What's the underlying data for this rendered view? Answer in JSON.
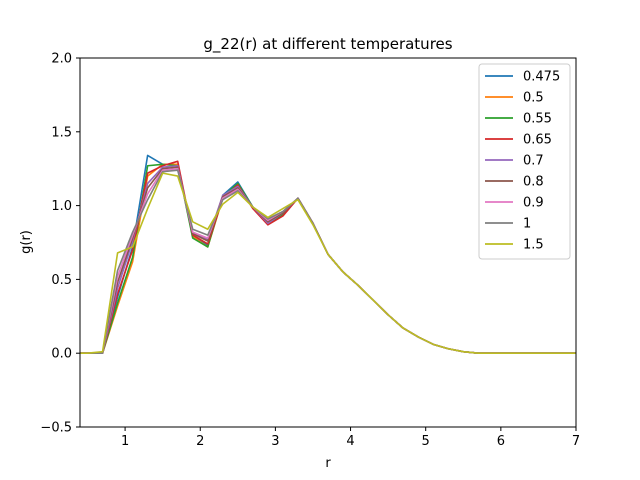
{
  "chart_data": {
    "type": "line",
    "title": "g_22(r) at different temperatures",
    "xlabel": "r",
    "ylabel": "g(r)",
    "xlim": [
      0.4,
      7
    ],
    "ylim": [
      -0.5,
      2.0
    ],
    "xticks": [
      1,
      2,
      3,
      4,
      5,
      6,
      7
    ],
    "yticks": [
      -0.5,
      0.0,
      0.5,
      1.0,
      1.5,
      2.0
    ],
    "ytick_labels": [
      "−0.5",
      "0.0",
      "0.5",
      "1.0",
      "1.5",
      "2.0"
    ],
    "grid": false,
    "legend_position": "upper right",
    "x": [
      0.4,
      0.5,
      0.7,
      0.9,
      1.1,
      1.3,
      1.5,
      1.7,
      1.9,
      2.1,
      2.3,
      2.5,
      2.7,
      2.9,
      3.1,
      3.3,
      3.5,
      3.7,
      3.9,
      4.1,
      4.3,
      4.5,
      4.7,
      4.9,
      5.1,
      5.3,
      5.5,
      5.7,
      5.9,
      6.1,
      6.3,
      6.5,
      6.7,
      7.0
    ],
    "series": [
      {
        "name": "0.475",
        "color": "#1f77b4",
        "values": [
          0.0,
          0.0,
          0.0,
          0.38,
          0.72,
          1.34,
          1.28,
          1.28,
          0.79,
          0.73,
          1.07,
          1.16,
          0.99,
          0.88,
          0.95,
          1.05,
          0.88,
          0.67,
          0.55,
          0.46,
          0.36,
          0.26,
          0.17,
          0.11,
          0.06,
          0.03,
          0.01,
          0.0,
          0.0,
          0.0,
          0.0,
          0.0,
          0.0,
          0.0
        ]
      },
      {
        "name": "0.5",
        "color": "#ff7f0e",
        "values": [
          0.0,
          0.0,
          0.0,
          0.32,
          0.62,
          1.2,
          1.28,
          1.28,
          0.79,
          0.72,
          1.05,
          1.13,
          0.99,
          0.88,
          0.94,
          1.05,
          0.88,
          0.67,
          0.55,
          0.46,
          0.36,
          0.26,
          0.17,
          0.11,
          0.06,
          0.03,
          0.01,
          0.0,
          0.0,
          0.0,
          0.0,
          0.0,
          0.0,
          0.0
        ]
      },
      {
        "name": "0.55",
        "color": "#2ca02c",
        "values": [
          0.0,
          0.0,
          0.0,
          0.34,
          0.65,
          1.27,
          1.28,
          1.27,
          0.78,
          0.72,
          1.06,
          1.15,
          0.99,
          0.88,
          0.94,
          1.05,
          0.88,
          0.67,
          0.55,
          0.46,
          0.36,
          0.26,
          0.17,
          0.11,
          0.06,
          0.03,
          0.01,
          0.0,
          0.0,
          0.0,
          0.0,
          0.0,
          0.0,
          0.0
        ]
      },
      {
        "name": "0.65",
        "color": "#d62728",
        "values": [
          0.0,
          0.0,
          0.0,
          0.4,
          0.7,
          1.22,
          1.27,
          1.3,
          0.8,
          0.74,
          1.05,
          1.14,
          0.98,
          0.87,
          0.93,
          1.05,
          0.88,
          0.67,
          0.55,
          0.46,
          0.36,
          0.26,
          0.17,
          0.11,
          0.06,
          0.03,
          0.01,
          0.0,
          0.0,
          0.0,
          0.0,
          0.0,
          0.0,
          0.0
        ]
      },
      {
        "name": "0.7",
        "color": "#9467bd",
        "values": [
          0.0,
          0.0,
          0.0,
          0.44,
          0.76,
          1.15,
          1.26,
          1.27,
          0.81,
          0.77,
          1.07,
          1.13,
          0.99,
          0.88,
          0.95,
          1.05,
          0.88,
          0.67,
          0.55,
          0.46,
          0.36,
          0.26,
          0.17,
          0.11,
          0.06,
          0.03,
          0.01,
          0.0,
          0.0,
          0.0,
          0.0,
          0.0,
          0.0,
          0.0
        ]
      },
      {
        "name": "0.8",
        "color": "#8c564b",
        "values": [
          0.0,
          0.0,
          0.0,
          0.48,
          0.78,
          1.12,
          1.25,
          1.26,
          0.81,
          0.76,
          1.06,
          1.12,
          0.99,
          0.89,
          0.95,
          1.05,
          0.88,
          0.67,
          0.55,
          0.46,
          0.36,
          0.26,
          0.17,
          0.11,
          0.06,
          0.03,
          0.01,
          0.0,
          0.0,
          0.0,
          0.0,
          0.0,
          0.0,
          0.0
        ]
      },
      {
        "name": "0.9",
        "color": "#e377c2",
        "values": [
          0.0,
          0.0,
          0.0,
          0.52,
          0.8,
          1.08,
          1.24,
          1.25,
          0.82,
          0.78,
          1.05,
          1.11,
          0.99,
          0.9,
          0.96,
          1.05,
          0.88,
          0.67,
          0.55,
          0.46,
          0.36,
          0.26,
          0.17,
          0.11,
          0.06,
          0.03,
          0.01,
          0.0,
          0.0,
          0.0,
          0.0,
          0.0,
          0.0,
          0.0
        ]
      },
      {
        "name": "1",
        "color": "#7f7f7f",
        "values": [
          0.0,
          0.0,
          0.0,
          0.56,
          0.82,
          1.04,
          1.23,
          1.24,
          0.84,
          0.8,
          1.04,
          1.1,
          0.99,
          0.91,
          0.96,
          1.05,
          0.88,
          0.67,
          0.55,
          0.46,
          0.36,
          0.26,
          0.17,
          0.11,
          0.06,
          0.03,
          0.01,
          0.0,
          0.0,
          0.0,
          0.0,
          0.0,
          0.0,
          0.0
        ]
      },
      {
        "name": "1.5",
        "color": "#bcbd22",
        "values": [
          0.0,
          0.0,
          0.01,
          0.68,
          0.72,
          0.98,
          1.22,
          1.2,
          0.89,
          0.84,
          1.01,
          1.09,
          0.99,
          0.92,
          0.98,
          1.04,
          0.87,
          0.67,
          0.55,
          0.46,
          0.36,
          0.26,
          0.17,
          0.11,
          0.06,
          0.03,
          0.01,
          0.0,
          0.0,
          0.0,
          0.0,
          0.0,
          0.0,
          0.0
        ]
      }
    ]
  }
}
